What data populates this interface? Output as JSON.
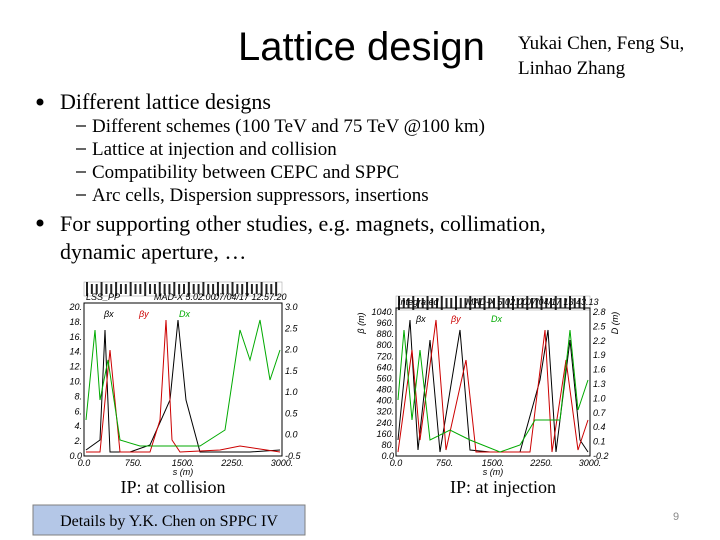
{
  "header": {
    "title": "Lattice design",
    "authors": [
      "Yukai Chen, Feng Su,",
      "Linhao Zhang"
    ]
  },
  "bullets": [
    {
      "text": "Different lattice designs",
      "items": [
        "Different schemes (100 TeV and 75 TeV @100 km)",
        "Lattice at injection and collision",
        "Compatibility between CEPC and SPPC",
        "Arc cells, Dispersion suppressors, insertions"
      ]
    },
    {
      "lines": [
        "For supporting other studies, e.g. magnets, collimation,",
        "dynamic aperture, …"
      ]
    }
  ],
  "plots": [
    {
      "header": [
        "LSS_PP",
        "MAD-X 5.02.00",
        "07/04/17 12.57.20"
      ],
      "legend": [
        "βx",
        "βy",
        "Dx"
      ],
      "left_ticks": [
        "20.",
        "18.",
        "16.",
        "14.",
        "12.",
        "10.",
        "8.",
        "6.",
        "4.",
        "2.",
        "0.0"
      ],
      "right_ticks": [
        "3.0",
        "2.5",
        "2.0",
        "1.5",
        "1.0",
        "0.5",
        "0.0",
        "-0.5"
      ],
      "x_ticks": [
        "0.0",
        "750.",
        "1500.",
        "2250.",
        "3000."
      ],
      "x_label": "s (m)",
      "caption": "IP: at collision"
    },
    {
      "header": [
        "Integrated",
        "MAD-X 5.02.00",
        "07/04/17 13.43.13"
      ],
      "legend": [
        "βx",
        "βy",
        "Dx"
      ],
      "left_ticks": [
        "1040.",
        "960.",
        "880.",
        "800.",
        "720.",
        "640.",
        "560.",
        "480.",
        "400.",
        "320.",
        "240.",
        "160.",
        "80.",
        "0.0"
      ],
      "right_ticks": [
        "2.8",
        "2.5",
        "2.2",
        "1.9",
        "1.6",
        "1.3",
        "1.0",
        "0.7",
        "0.4",
        "0.1",
        "-0.2"
      ],
      "x_ticks": [
        "0.0",
        "750.",
        "1500.",
        "2250.",
        "3000."
      ],
      "x_label": "s (m)",
      "y_label": "β (m)",
      "y2_label": "D (m)",
      "caption": "IP: at injection"
    }
  ],
  "footer": {
    "note": "Details by Y.K. Chen on SPPC IV",
    "page": "9"
  }
}
